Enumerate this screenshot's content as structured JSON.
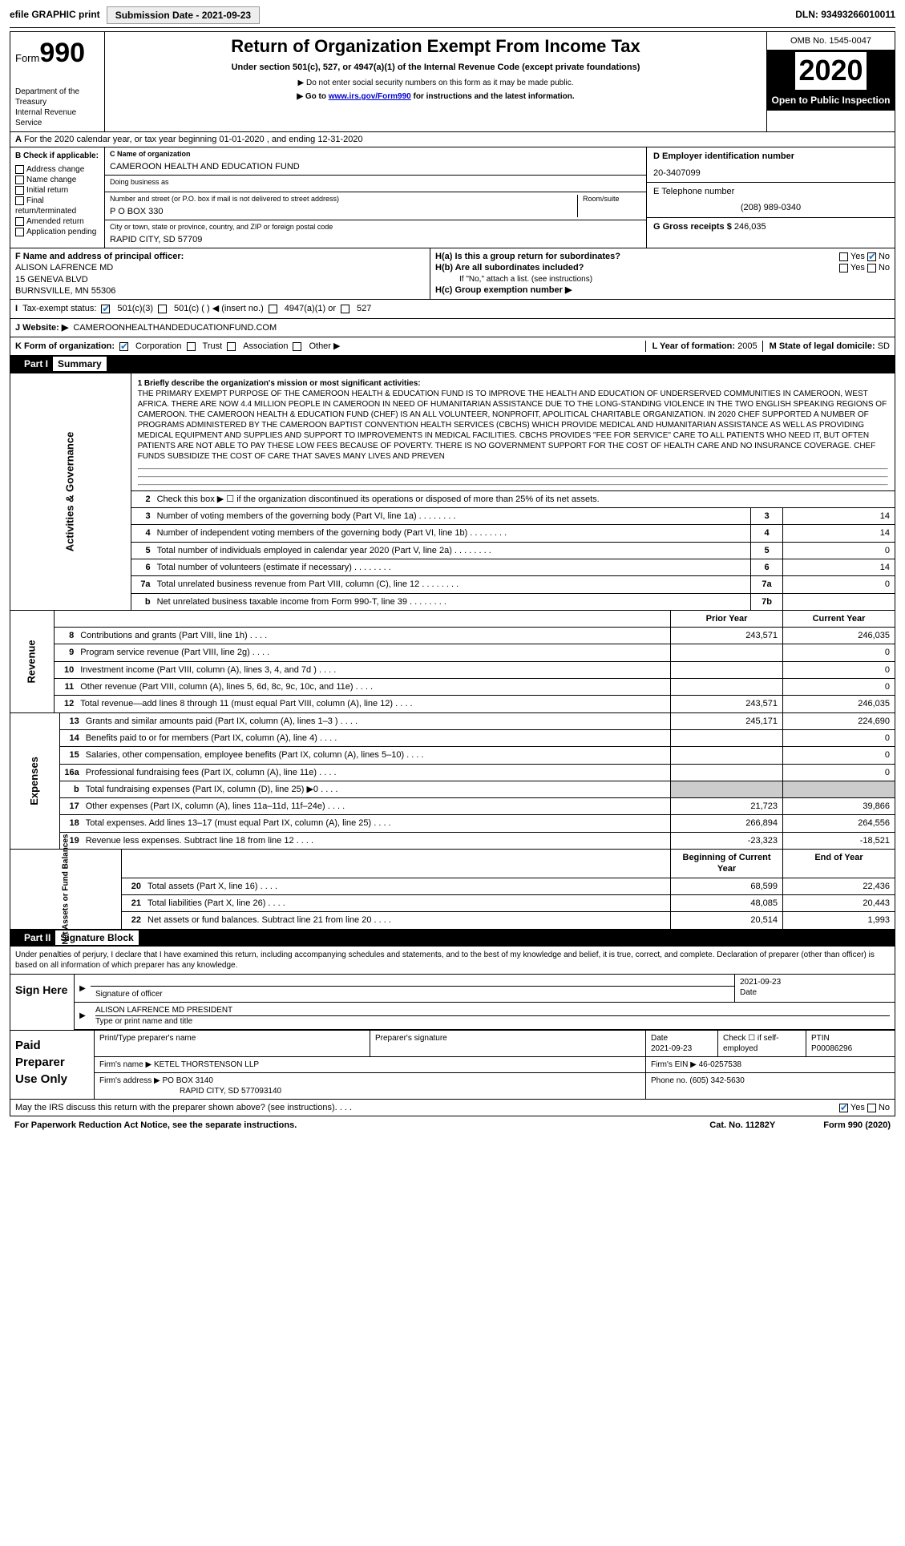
{
  "topbar": {
    "efile_label": "efile GRAPHIC print",
    "submission_label": "Submission Date - 2021-09-23",
    "dln": "DLN: 93493266010011"
  },
  "header": {
    "form_prefix": "Form",
    "form_number": "990",
    "dept": "Department of the Treasury",
    "irs": "Internal Revenue Service",
    "title": "Return of Organization Exempt From Income Tax",
    "subtitle": "Under section 501(c), 527, or 4947(a)(1) of the Internal Revenue Code (except private foundations)",
    "note1": "▶ Do not enter social security numbers on this form as it may be made public.",
    "note2_pre": "▶ Go to ",
    "note2_link": "www.irs.gov/Form990",
    "note2_post": " for instructions and the latest information.",
    "omb": "OMB No. 1545-0047",
    "year": "2020",
    "inspection": "Open to Public Inspection"
  },
  "a_line": "For the 2020 calendar year, or tax year beginning 01-01-2020   , and ending 12-31-2020",
  "b": {
    "label": "B Check if applicable:",
    "items": [
      "Address change",
      "Name change",
      "Initial return",
      "Final return/terminated",
      "Amended return",
      "Application pending"
    ]
  },
  "c": {
    "name_lbl": "C Name of organization",
    "name": "CAMEROON HEALTH AND EDUCATION FUND",
    "dba_lbl": "Doing business as",
    "dba": "",
    "addr_lbl": "Number and street (or P.O. box if mail is not delivered to street address)",
    "room_lbl": "Room/suite",
    "addr": "P O BOX 330",
    "city_lbl": "City or town, state or province, country, and ZIP or foreign postal code",
    "city": "RAPID CITY, SD  57709"
  },
  "d": {
    "lbl": "D Employer identification number",
    "val": "20-3407099"
  },
  "e": {
    "lbl": "E Telephone number",
    "val": "(208) 989-0340"
  },
  "g": {
    "lbl": "G Gross receipts $",
    "val": "246,035"
  },
  "f": {
    "lbl": "F  Name and address of principal officer:",
    "name": "ALISON LAFRENCE MD",
    "addr1": "15 GENEVA BLVD",
    "addr2": "BURNSVILLE, MN  55306"
  },
  "h": {
    "a_lbl": "H(a)  Is this a group return for subordinates?",
    "b_lbl": "H(b)  Are all subordinates included?",
    "note": "If \"No,\" attach a list. (see instructions)",
    "c_lbl": "H(c)   Group exemption number ▶"
  },
  "i": {
    "lbl": "Tax-exempt status:",
    "opts": [
      "501(c)(3)",
      "501(c) (  ) ◀ (insert no.)",
      "4947(a)(1) or",
      "527"
    ]
  },
  "j": {
    "lbl": "J   Website: ▶",
    "val": "CAMEROONHEALTHANDEDUCATIONFUND.COM"
  },
  "k": {
    "lbl": "K Form of organization:",
    "opts": [
      "Corporation",
      "Trust",
      "Association",
      "Other ▶"
    ],
    "l_lbl": "L Year of formation:",
    "l_val": "2005",
    "m_lbl": "M State of legal domicile:",
    "m_val": "SD"
  },
  "part1": {
    "hdr": "Part I",
    "title": "Summary",
    "mission_lbl": "1   Briefly describe the organization's mission or most significant activities:",
    "mission": "THE PRIMARY EXEMPT PURPOSE OF THE CAMEROON HEALTH & EDUCATION FUND IS TO IMPROVE THE HEALTH AND EDUCATION OF UNDERSERVED COMMUNITIES IN CAMEROON, WEST AFRICA. THERE ARE NOW 4.4 MILLION PEOPLE IN CAMEROON IN NEED OF HUMANITARIAN ASSISTANCE DUE TO THE LONG-STANDING VIOLENCE IN THE TWO ENGLISH SPEAKING REGIONS OF CAMEROON. THE CAMEROON HEALTH & EDUCATION FUND (CHEF) IS AN ALL VOLUNTEER, NONPROFIT, APOLITICAL CHARITABLE ORGANIZATION. IN 2020 CHEF SUPPORTED A NUMBER OF PROGRAMS ADMINISTERED BY THE CAMEROON BAPTIST CONVENTION HEALTH SERVICES (CBCHS) WHICH PROVIDE MEDICAL AND HUMANITARIAN ASSISTANCE AS WELL AS PROVIDING MEDICAL EQUIPMENT AND SUPPLIES AND SUPPORT TO IMPROVEMENTS IN MEDICAL FACILITIES. CBCHS PROVIDES \"FEE FOR SERVICE\" CARE TO ALL PATIENTS WHO NEED IT, BUT OFTEN PATIENTS ARE NOT ABLE TO PAY THESE LOW FEES BECAUSE OF POVERTY. THERE IS NO GOVERNMENT SUPPORT FOR THE COST OF HEALTH CARE AND NO INSURANCE COVERAGE. CHEF FUNDS SUBSIDIZE THE COST OF CARE THAT SAVES MANY LIVES AND PREVEN",
    "line2": "Check this box ▶ ☐ if the organization discontinued its operations or disposed of more than 25% of its net assets.",
    "lines_gov": [
      {
        "n": "3",
        "d": "Number of voting members of the governing body (Part VI, line 1a)",
        "box": "3",
        "v": "14"
      },
      {
        "n": "4",
        "d": "Number of independent voting members of the governing body (Part VI, line 1b)",
        "box": "4",
        "v": "14"
      },
      {
        "n": "5",
        "d": "Total number of individuals employed in calendar year 2020 (Part V, line 2a)",
        "box": "5",
        "v": "0"
      },
      {
        "n": "6",
        "d": "Total number of volunteers (estimate if necessary)",
        "box": "6",
        "v": "14"
      },
      {
        "n": "7a",
        "d": "Total unrelated business revenue from Part VIII, column (C), line 12",
        "box": "7a",
        "v": "0"
      },
      {
        "n": "b",
        "d": "Net unrelated business taxable income from Form 990-T, line 39",
        "box": "7b",
        "v": ""
      }
    ],
    "prior_hdr": "Prior Year",
    "curr_hdr": "Current Year",
    "revenue": [
      {
        "n": "8",
        "d": "Contributions and grants (Part VIII, line 1h)",
        "p": "243,571",
        "c": "246,035"
      },
      {
        "n": "9",
        "d": "Program service revenue (Part VIII, line 2g)",
        "p": "",
        "c": "0"
      },
      {
        "n": "10",
        "d": "Investment income (Part VIII, column (A), lines 3, 4, and 7d )",
        "p": "",
        "c": "0"
      },
      {
        "n": "11",
        "d": "Other revenue (Part VIII, column (A), lines 5, 6d, 8c, 9c, 10c, and 11e)",
        "p": "",
        "c": "0"
      },
      {
        "n": "12",
        "d": "Total revenue—add lines 8 through 11 (must equal Part VIII, column (A), line 12)",
        "p": "243,571",
        "c": "246,035"
      }
    ],
    "expenses": [
      {
        "n": "13",
        "d": "Grants and similar amounts paid (Part IX, column (A), lines 1–3 )",
        "p": "245,171",
        "c": "224,690"
      },
      {
        "n": "14",
        "d": "Benefits paid to or for members (Part IX, column (A), line 4)",
        "p": "",
        "c": "0"
      },
      {
        "n": "15",
        "d": "Salaries, other compensation, employee benefits (Part IX, column (A), lines 5–10)",
        "p": "",
        "c": "0"
      },
      {
        "n": "16a",
        "d": "Professional fundraising fees (Part IX, column (A), line 11e)",
        "p": "",
        "c": "0"
      },
      {
        "n": "b",
        "d": "Total fundraising expenses (Part IX, column (D), line 25) ▶0",
        "p": "grey",
        "c": "grey"
      },
      {
        "n": "17",
        "d": "Other expenses (Part IX, column (A), lines 11a–11d, 11f–24e)",
        "p": "21,723",
        "c": "39,866"
      },
      {
        "n": "18",
        "d": "Total expenses. Add lines 13–17 (must equal Part IX, column (A), line 25)",
        "p": "266,894",
        "c": "264,556"
      },
      {
        "n": "19",
        "d": "Revenue less expenses. Subtract line 18 from line 12",
        "p": "-23,323",
        "c": "-18,521"
      }
    ],
    "boy_hdr": "Beginning of Current Year",
    "eoy_hdr": "End of Year",
    "netassets": [
      {
        "n": "20",
        "d": "Total assets (Part X, line 16)",
        "p": "68,599",
        "c": "22,436"
      },
      {
        "n": "21",
        "d": "Total liabilities (Part X, line 26)",
        "p": "48,085",
        "c": "20,443"
      },
      {
        "n": "22",
        "d": "Net assets or fund balances. Subtract line 21 from line 20",
        "p": "20,514",
        "c": "1,993"
      }
    ]
  },
  "part2": {
    "hdr": "Part II",
    "title": "Signature Block"
  },
  "penalties": "Under penalties of perjury, I declare that I have examined this return, including accompanying schedules and statements, and to the best of my knowledge and belief, it is true, correct, and complete. Declaration of preparer (other than officer) is based on all information of which preparer has any knowledge.",
  "sign": {
    "label": "Sign Here",
    "sig_lbl": "Signature of officer",
    "date_lbl": "Date",
    "date": "2021-09-23",
    "name": "ALISON LAFRENCE MD  PRESIDENT",
    "name_lbl": "Type or print name and title"
  },
  "prep": {
    "label": "Paid Preparer Use Only",
    "c1": "Print/Type preparer's name",
    "c2": "Preparer's signature",
    "c3": "Date",
    "c3v": "2021-09-23",
    "c4": "Check ☐ if self-employed",
    "c5": "PTIN",
    "c5v": "P00086296",
    "firm_lbl": "Firm's name    ▶",
    "firm": "KETEL THORSTENSON LLP",
    "ein_lbl": "Firm's EIN ▶",
    "ein": "46-0257538",
    "addr_lbl": "Firm's address ▶",
    "addr": "PO BOX 3140",
    "addr2": "RAPID CITY, SD  577093140",
    "phone_lbl": "Phone no.",
    "phone": "(605) 342-5630"
  },
  "footer": {
    "discuss": "May the IRS discuss this return with the preparer shown above? (see instructions)",
    "pra": "For Paperwork Reduction Act Notice, see the separate instructions.",
    "cat": "Cat. No. 11282Y",
    "form": "Form 990 (2020)"
  },
  "sidebars": {
    "gov": "Activities & Governance",
    "rev": "Revenue",
    "exp": "Expenses",
    "net": "Net Assets or Fund Balances"
  }
}
